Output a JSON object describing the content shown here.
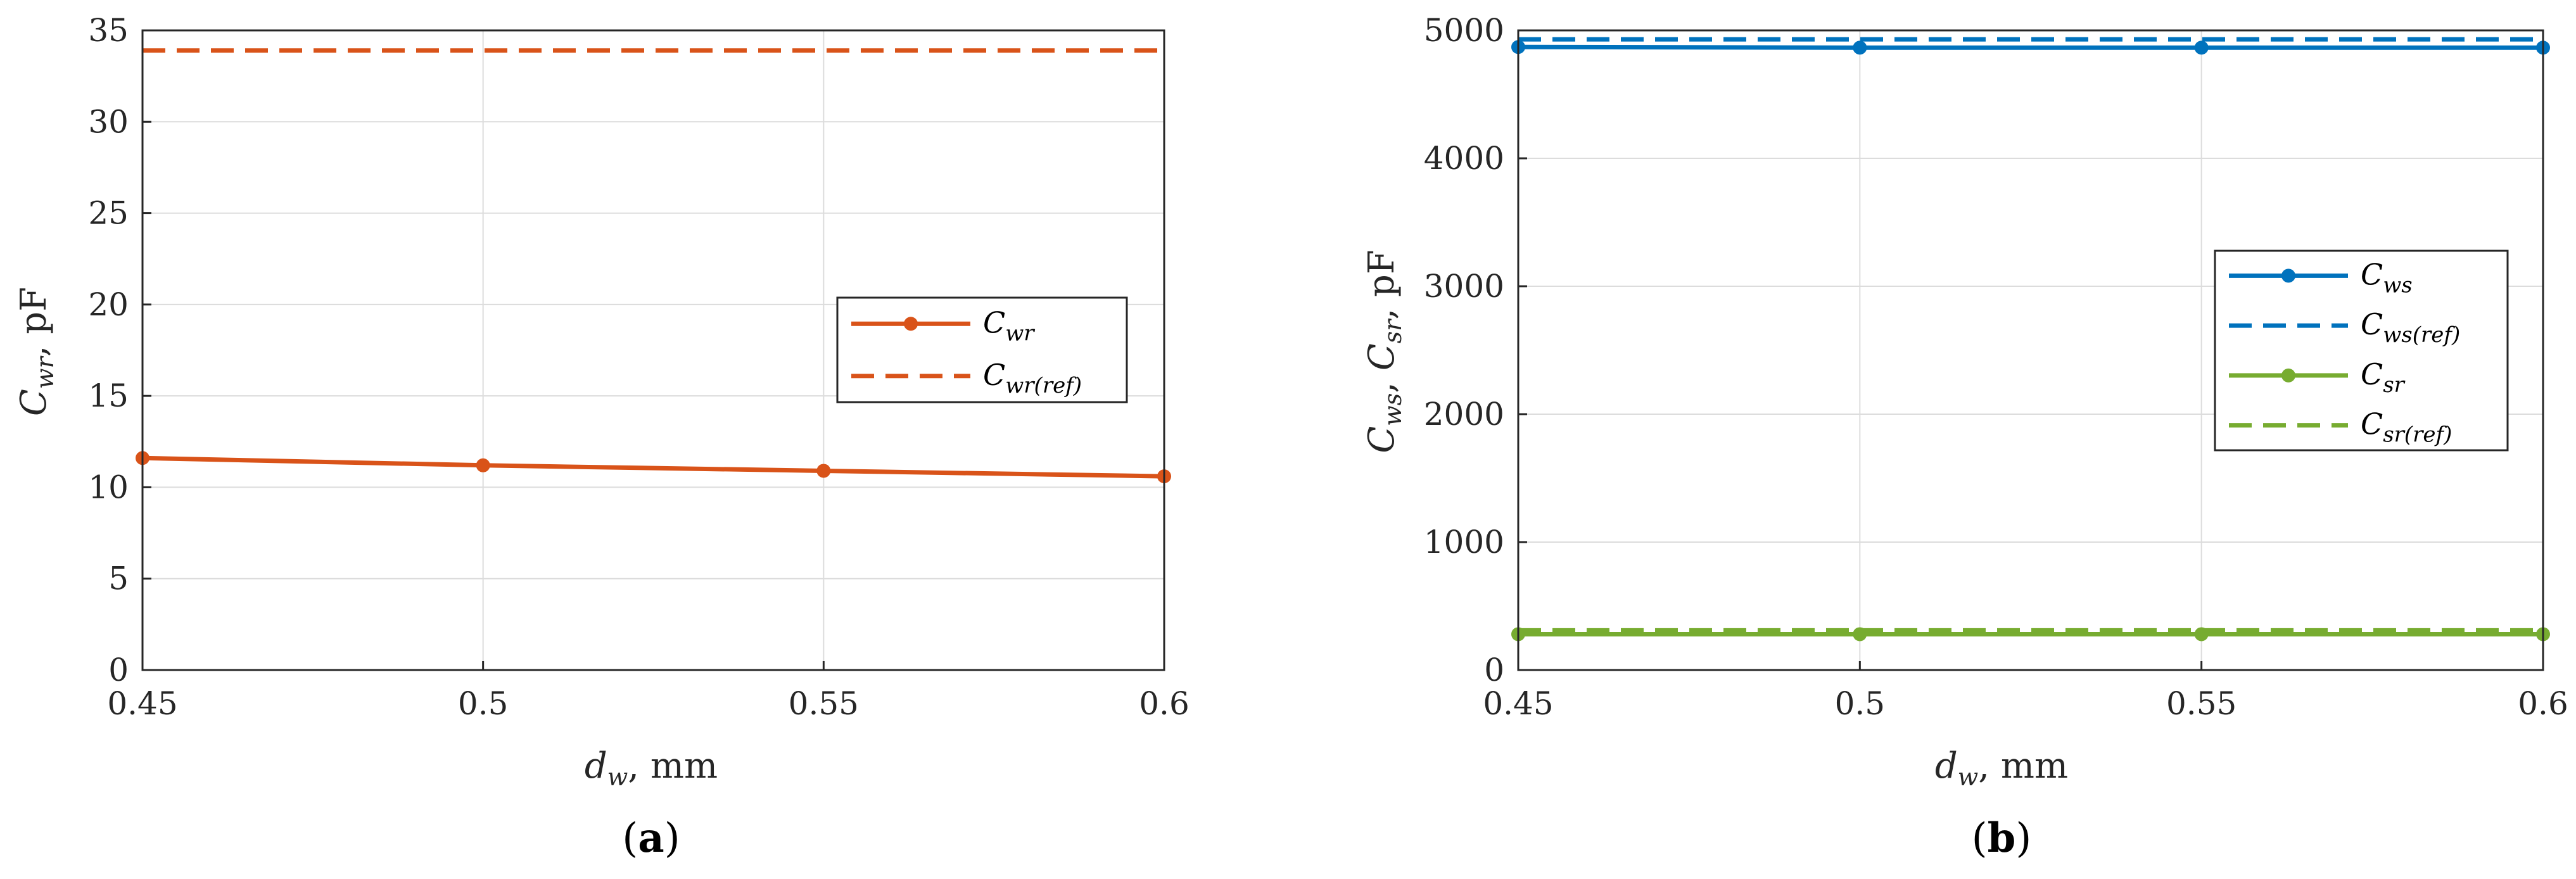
{
  "chart_data": [
    {
      "type": "line",
      "panel_label": "a",
      "x": [
        0.45,
        0.5,
        0.55,
        0.6
      ],
      "xlim": [
        0.45,
        0.6
      ],
      "ylim": [
        0,
        35
      ],
      "xticks": [
        "0.45",
        "0.5",
        "0.55",
        "0.6"
      ],
      "yticks": [
        "0",
        "5",
        "10",
        "15",
        "20",
        "25",
        "30",
        "35"
      ],
      "xlabel": "d_w, mm",
      "ylabel": "C_wr, pF",
      "grid": true,
      "legend_position": "center-right",
      "series": [
        {
          "name": "C_wr",
          "values": [
            11.6,
            11.2,
            10.9,
            10.6
          ],
          "color": "#D95319",
          "style": "solid",
          "markers": true
        },
        {
          "name": "C_wr(ref)",
          "values": [
            33.9,
            33.9,
            33.9,
            33.9
          ],
          "color": "#D95319",
          "style": "dashed",
          "markers": false
        }
      ]
    },
    {
      "type": "line",
      "panel_label": "b",
      "x": [
        0.45,
        0.5,
        0.55,
        0.6
      ],
      "xlim": [
        0.45,
        0.6
      ],
      "ylim": [
        0,
        5000
      ],
      "xticks": [
        "0.45",
        "0.5",
        "0.55",
        "0.6"
      ],
      "yticks": [
        "0",
        "1000",
        "2000",
        "3000",
        "4000",
        "5000"
      ],
      "xlabel": "d_w, mm",
      "ylabel": "C_ws, C_sr, pF",
      "grid": true,
      "legend_position": "center-right",
      "series": [
        {
          "name": "C_ws",
          "values": [
            4870,
            4865,
            4865,
            4865
          ],
          "color": "#0072BD",
          "style": "solid",
          "markers": true
        },
        {
          "name": "C_ws(ref)",
          "values": [
            4930,
            4930,
            4930,
            4930
          ],
          "color": "#0072BD",
          "style": "dashed",
          "markers": false
        },
        {
          "name": "C_sr",
          "values": [
            280,
            280,
            280,
            280
          ],
          "color": "#77AC30",
          "style": "solid",
          "markers": true
        },
        {
          "name": "C_sr(ref)",
          "values": [
            310,
            310,
            310,
            310
          ],
          "color": "#77AC30",
          "style": "dashed",
          "markers": false
        }
      ]
    }
  ],
  "labels": {
    "a_xlabel_var": "d",
    "a_xlabel_sub": "w",
    "a_xlabel_unit": ", mm",
    "a_ylabel_var": "C",
    "a_ylabel_sub": "wr",
    "a_ylabel_unit": ", pF",
    "a_panel": "a",
    "b_xlabel_var": "d",
    "b_xlabel_sub": "w",
    "b_xlabel_unit": ", mm",
    "b_ylabel_var1": "C",
    "b_ylabel_sub1": "ws",
    "b_ylabel_sep": ",  ",
    "b_ylabel_var2": "C",
    "b_ylabel_sub2": "sr",
    "b_ylabel_unit": ", pF",
    "b_panel": "b",
    "leg_var": "C",
    "a_leg_sub": [
      "wr",
      "wr(ref)"
    ],
    "b_leg_sub": [
      "ws",
      "ws(ref)",
      "sr",
      "sr(ref)"
    ]
  }
}
